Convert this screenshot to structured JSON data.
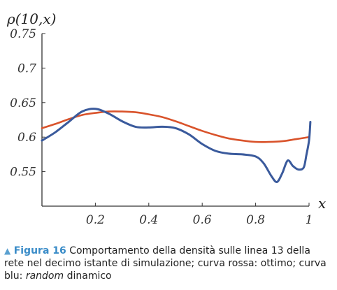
{
  "chart_data": {
    "type": "line",
    "ylabel": "ρ(10,x)",
    "xlabel": "x",
    "xlim": [
      0,
      1
    ],
    "ylim": [
      0.5,
      0.75
    ],
    "x_ticks": [
      "0.2",
      "0.4",
      "0.6",
      "0.8",
      "1"
    ],
    "x_tick_values": [
      0.2,
      0.4,
      0.6,
      0.8,
      1.0
    ],
    "y_ticks": [
      "0.75",
      "0.7",
      "0.65",
      "0.6",
      "0.55"
    ],
    "y_tick_values": [
      0.75,
      0.7,
      0.65,
      0.6,
      0.55
    ],
    "series": [
      {
        "color": "#d9532b",
        "x": [
          0.0,
          0.05,
          0.1,
          0.15,
          0.2,
          0.25,
          0.3,
          0.35,
          0.4,
          0.45,
          0.5,
          0.55,
          0.6,
          0.65,
          0.7,
          0.75,
          0.8,
          0.85,
          0.9,
          0.95,
          1.0
        ],
        "y": [
          0.613,
          0.619,
          0.626,
          0.632,
          0.635,
          0.637,
          0.637,
          0.636,
          0.633,
          0.629,
          0.623,
          0.616,
          0.609,
          0.603,
          0.598,
          0.595,
          0.593,
          0.593,
          0.594,
          0.597,
          0.6
        ]
      },
      {
        "color": "#3a5a9c",
        "x": [
          0.0,
          0.05,
          0.1,
          0.15,
          0.2,
          0.25,
          0.3,
          0.35,
          0.4,
          0.45,
          0.5,
          0.55,
          0.6,
          0.65,
          0.7,
          0.75,
          0.8,
          0.83,
          0.86,
          0.88,
          0.9,
          0.92,
          0.94,
          0.96,
          0.98,
          0.99,
          1.0,
          1.005
        ],
        "y": [
          0.595,
          0.607,
          0.622,
          0.637,
          0.641,
          0.634,
          0.623,
          0.615,
          0.614,
          0.615,
          0.613,
          0.604,
          0.59,
          0.58,
          0.576,
          0.575,
          0.572,
          0.562,
          0.543,
          0.535,
          0.548,
          0.566,
          0.558,
          0.553,
          0.556,
          0.574,
          0.595,
          0.622
        ]
      }
    ]
  },
  "caption": {
    "arrow": "▲",
    "figure_label": "Figura 16",
    "text_before": " Comportamento della densità sulle linea 13 della rete nel decimo istante di simulazione; curva rossa: ottimo; curva blu: ",
    "emphasis": "random",
    "text_after": " dinamico"
  }
}
